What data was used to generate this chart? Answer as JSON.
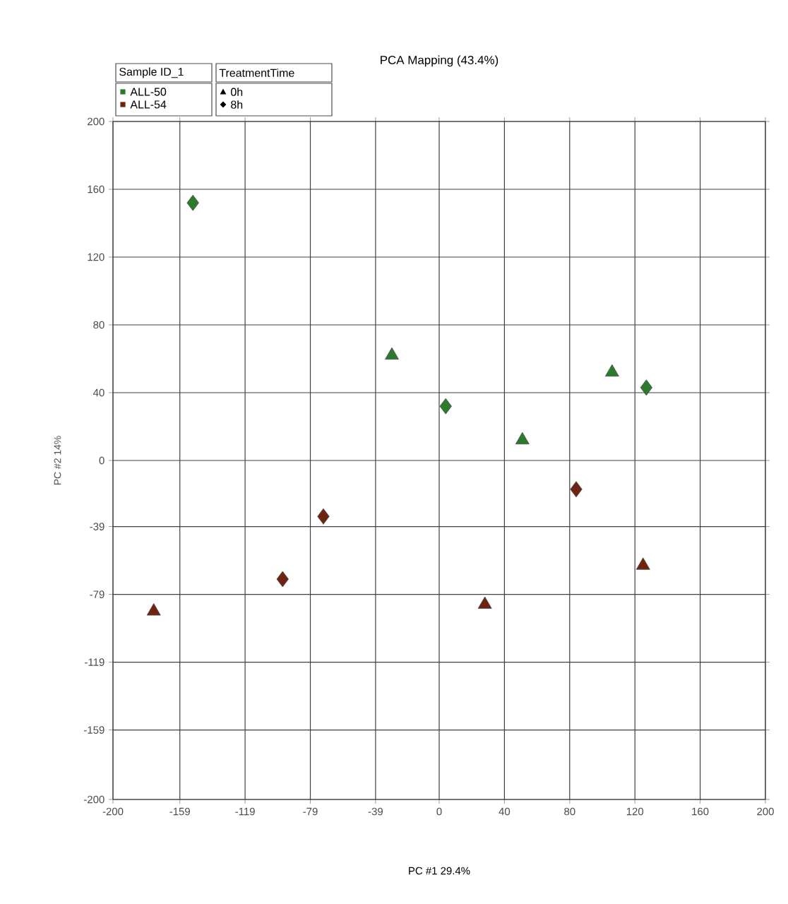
{
  "chart_data": {
    "type": "scatter",
    "title": "PCA Mapping (43.4%)",
    "xlabel": "PC #1 29.4%",
    "ylabel": "PC #2  14%",
    "xlim": [
      -200,
      200
    ],
    "ylim": [
      -200,
      200
    ],
    "xticks": [
      -200,
      -159,
      -119,
      -79,
      -39,
      0,
      40,
      80,
      120,
      160,
      200
    ],
    "yticks": [
      -200,
      -159,
      -119,
      -79,
      -39,
      0,
      40,
      80,
      120,
      160,
      200
    ],
    "grid": true,
    "annotations": [
      "Sample ID_1",
      "ALL-50",
      "ALL-54",
      "TreatmentTime",
      "0h",
      "8h"
    ],
    "series": [
      {
        "color": "#2d7a2d",
        "marker": "triangle",
        "x": [
          -29,
          51,
          106
        ],
        "values": [
          62,
          12,
          52
        ]
      },
      {
        "color": "#2d7a2d",
        "marker": "diamond",
        "x": [
          -151,
          4,
          127
        ],
        "values": [
          152,
          32,
          43
        ]
      },
      {
        "color": "#6e2410",
        "marker": "triangle",
        "x": [
          -175,
          28,
          125
        ],
        "values": [
          -89,
          -85,
          -62
        ]
      },
      {
        "color": "#6e2410",
        "marker": "diamond",
        "x": [
          -96,
          -71,
          84
        ],
        "values": [
          -70,
          -33,
          -17
        ]
      }
    ]
  }
}
